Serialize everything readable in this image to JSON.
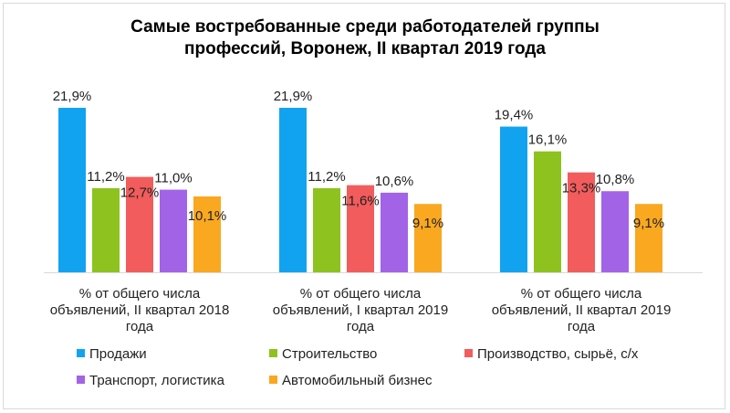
{
  "chart_data": {
    "type": "bar",
    "title_line1": "Самые востребованные среди работодателей группы",
    "title_line2": "профессий, Воронеж, II квартал 2019 года",
    "categories": [
      [
        "% от общего числа",
        "объявлений, II квартал 2018",
        "года"
      ],
      [
        "% от общего числа",
        "объявлений, I квартал 2019",
        "года"
      ],
      [
        "% от общего числа",
        "объявлений, II квартал 2019",
        "года"
      ]
    ],
    "series": [
      {
        "name": "Продажи",
        "color": "#12a3f0",
        "values": [
          21.9,
          21.9,
          19.4
        ],
        "labels": [
          "21,9%",
          "21,9%",
          "19,4%"
        ]
      },
      {
        "name": "Строительство",
        "color": "#8dc21f",
        "values": [
          11.2,
          11.2,
          16.1
        ],
        "labels": [
          "11,2%",
          "11,2%",
          "16,1%"
        ]
      },
      {
        "name": "Производство, сырьё, с/х",
        "color": "#f25c5c",
        "values": [
          12.7,
          11.6,
          13.3
        ],
        "labels": [
          "12,7%",
          "11,6%",
          "13,3%"
        ]
      },
      {
        "name": "Транспорт, логистика",
        "color": "#a363e6",
        "values": [
          11.0,
          10.6,
          10.8
        ],
        "labels": [
          "11,0%",
          "10,6%",
          "10,8%"
        ]
      },
      {
        "name": "Автомобильный бизнес",
        "color": "#f9a820",
        "values": [
          10.1,
          9.1,
          9.1
        ],
        "labels": [
          "10,1%",
          "9,1%",
          "9,1%"
        ]
      }
    ],
    "ylim": [
      0,
      23
    ],
    "grid": false,
    "legend": "bottom"
  }
}
